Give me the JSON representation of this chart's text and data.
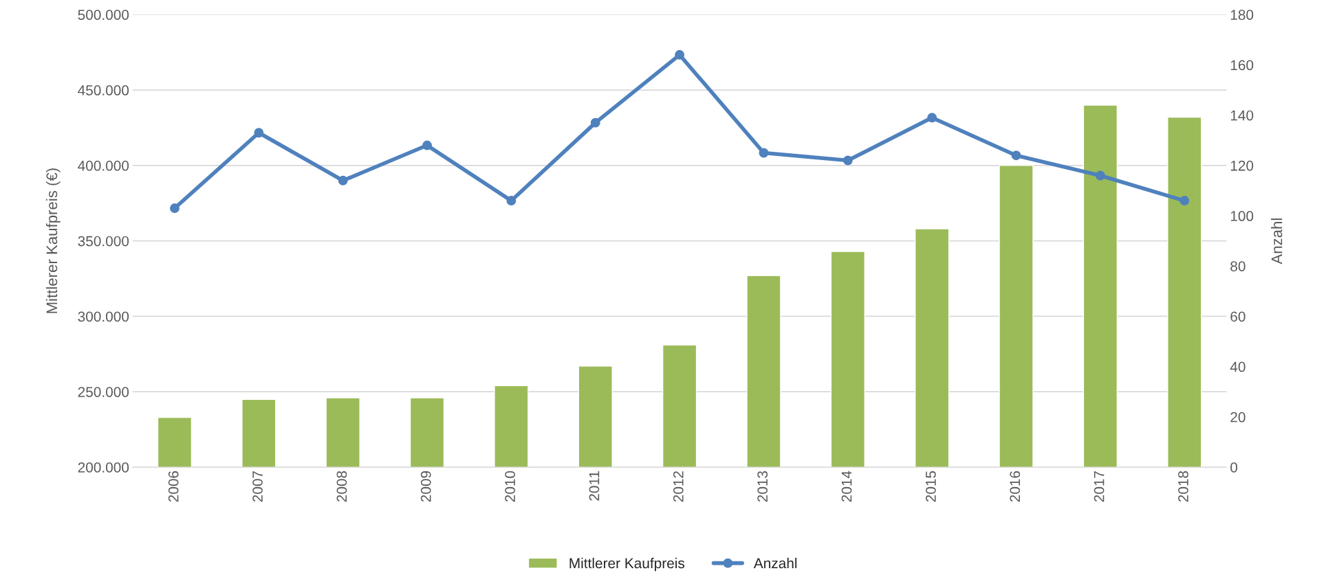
{
  "chart_data": {
    "type": "bar",
    "categories": [
      "2006",
      "2007",
      "2008",
      "2009",
      "2010",
      "2011",
      "2012",
      "2013",
      "2014",
      "2015",
      "2016",
      "2017",
      "2018"
    ],
    "series": [
      {
        "name": "Mittlerer Kaufpreis",
        "color": "#9bbb59",
        "values": [
          233000,
          245000,
          246000,
          246000,
          254000,
          267000,
          281000,
          327000,
          343000,
          358000,
          400000,
          440000,
          432000
        ]
      },
      {
        "name": "Anzahl",
        "type": "line",
        "axis": "y2",
        "color": "#4f81bd",
        "marker": "circle",
        "values": [
          103,
          133,
          114,
          128,
          106,
          137,
          164,
          125,
          122,
          139,
          124,
          116,
          106
        ]
      }
    ],
    "ylabel": "Mittlerer Kaufpreis (€)",
    "y2label": "Anzahl",
    "ylim": [
      200000,
      500000
    ],
    "yticks": [
      {
        "value": 200000,
        "label": "200.000"
      },
      {
        "value": 250000,
        "label": "250.000"
      },
      {
        "value": 300000,
        "label": "300.000"
      },
      {
        "value": 350000,
        "label": "350.000"
      },
      {
        "value": 400000,
        "label": "400.000"
      },
      {
        "value": 450000,
        "label": "450.000"
      },
      {
        "value": 500000,
        "label": "500.000"
      }
    ],
    "y2lim": [
      0,
      180
    ],
    "y2ticks": [
      0,
      20,
      40,
      60,
      80,
      100,
      120,
      140,
      160,
      180
    ],
    "grid": "y",
    "legend": "bottom"
  }
}
